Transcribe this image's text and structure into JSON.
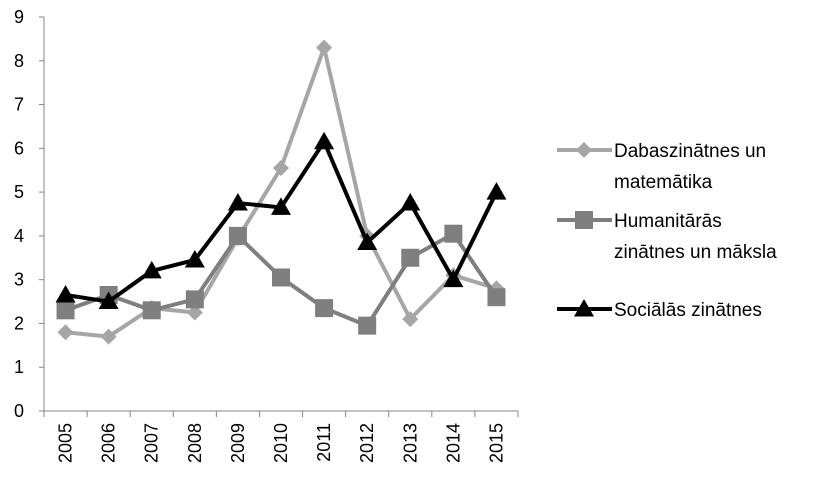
{
  "chart_data": {
    "type": "line",
    "title": "",
    "xlabel": "",
    "ylabel": "",
    "x": [
      "2005",
      "2006",
      "2007",
      "2008",
      "2009",
      "2010",
      "2011",
      "2012",
      "2013",
      "2014",
      "2015"
    ],
    "ylim": [
      0,
      9
    ],
    "yticks": [
      "0",
      "1",
      "2",
      "3",
      "4",
      "5",
      "6",
      "7",
      "8",
      "9"
    ],
    "grid": false,
    "legend_position": "right",
    "series": [
      {
        "name": "Dabaszinātnes un matemātika",
        "name_lines": [
          "Dabaszinātnes un",
          "matemātika"
        ],
        "color": "#a6a6a6",
        "marker": "diamond",
        "values": [
          1.8,
          1.7,
          2.35,
          2.25,
          3.95,
          5.55,
          8.3,
          4.0,
          2.1,
          3.1,
          2.8
        ]
      },
      {
        "name": "Humanitārās zinātnes un māksla",
        "name_lines": [
          "Humanitārās",
          "zinātnes un māksla"
        ],
        "color": "#7f7f7f",
        "marker": "square",
        "values": [
          2.3,
          2.65,
          2.3,
          2.55,
          4.0,
          3.05,
          2.35,
          1.95,
          3.5,
          4.05,
          2.6
        ]
      },
      {
        "name": "Sociālās zinātnes",
        "name_lines": [
          "Sociālās zinātnes"
        ],
        "color": "#000000",
        "marker": "triangle",
        "values": [
          2.65,
          2.5,
          3.2,
          3.45,
          4.75,
          4.65,
          6.15,
          3.85,
          4.75,
          3.0,
          5.0
        ]
      }
    ]
  }
}
